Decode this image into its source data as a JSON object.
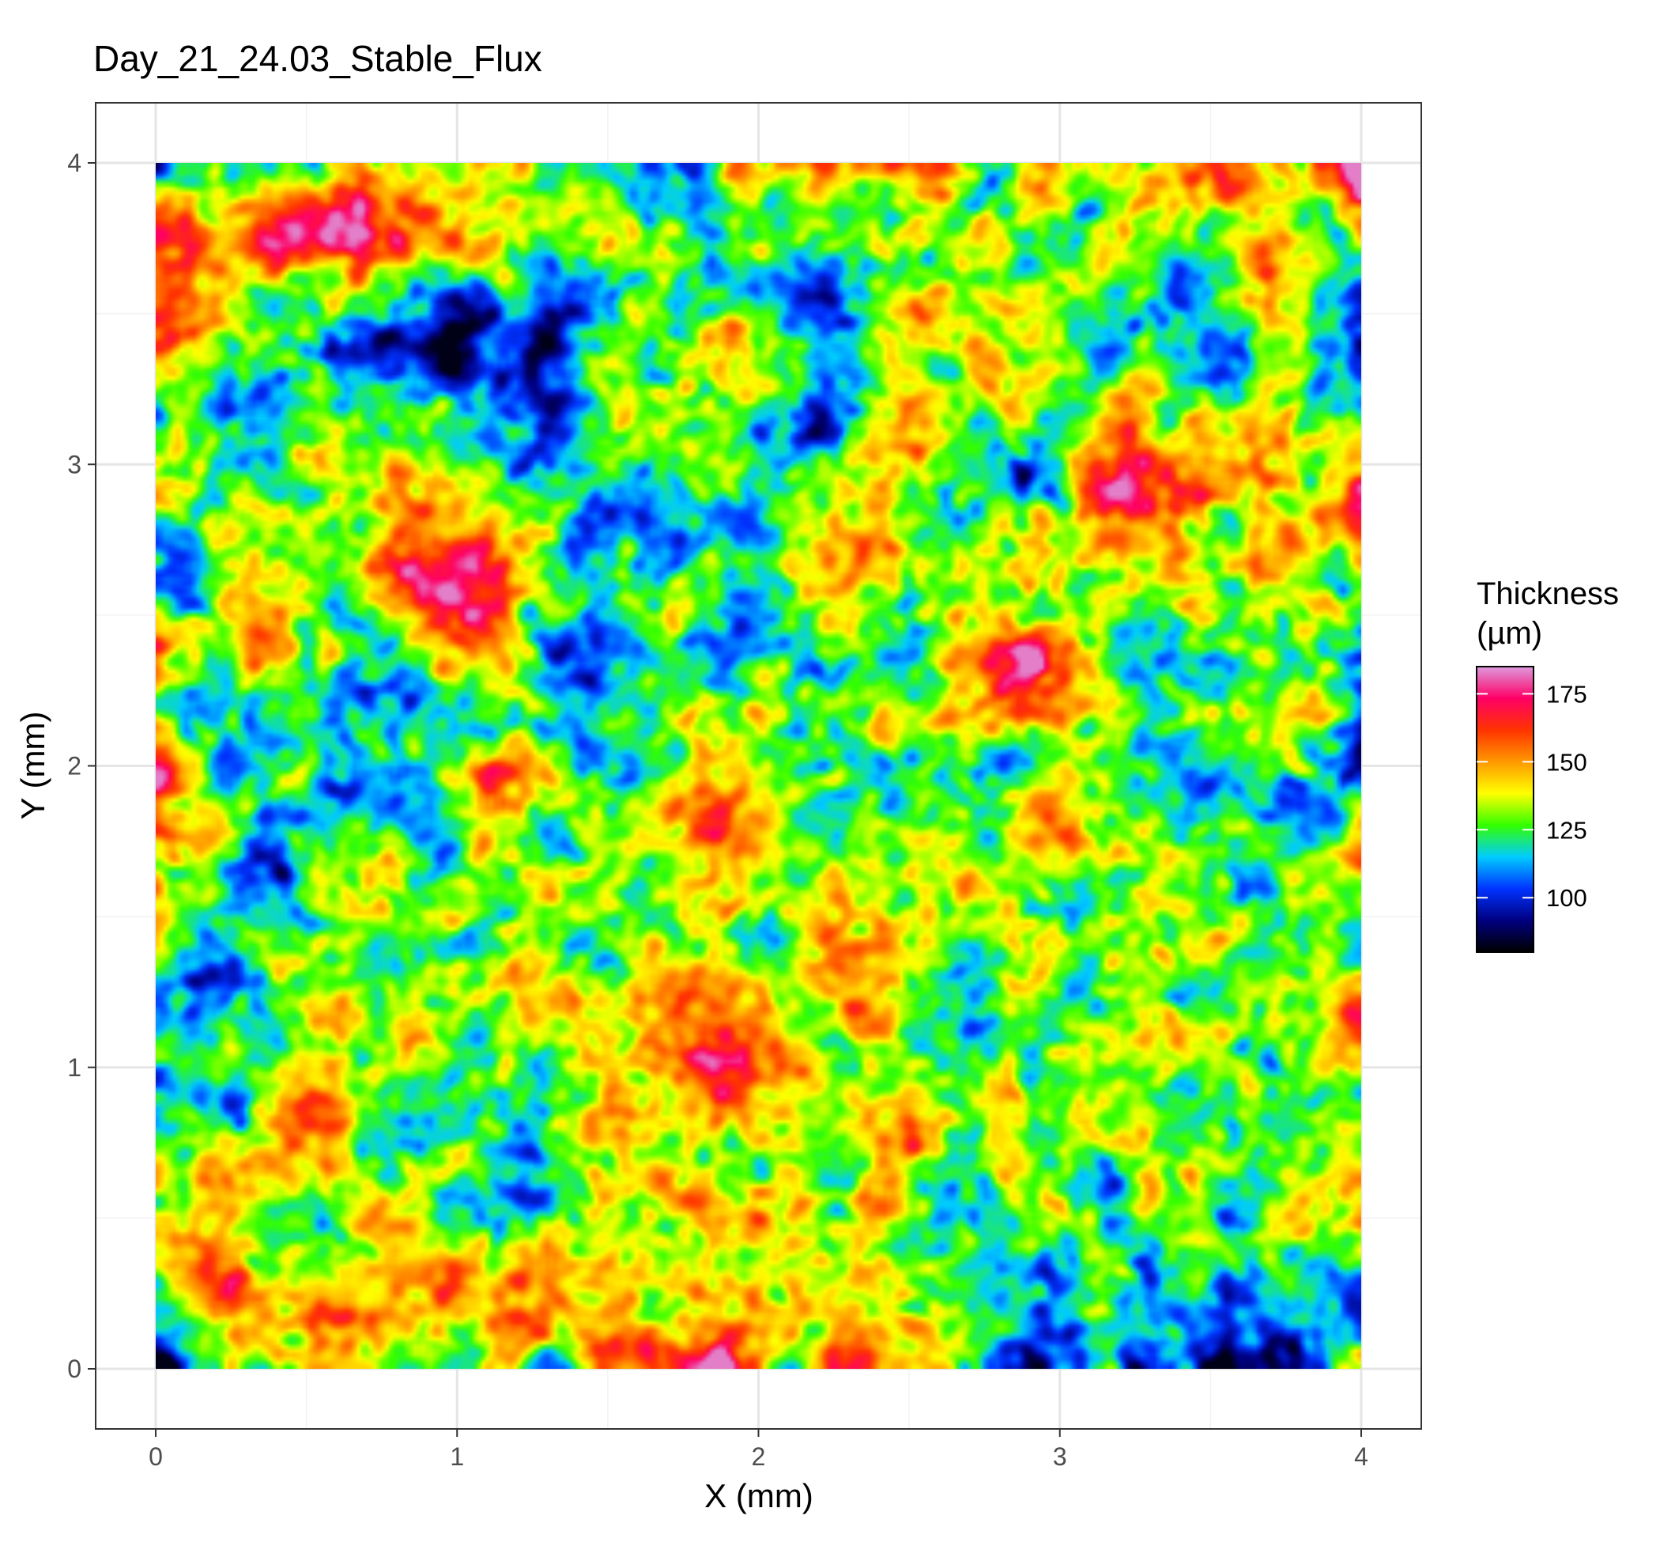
{
  "chart_data": {
    "type": "heatmap",
    "title": "Day_21_24.03_Stable_Flux",
    "xlabel": "X (mm)",
    "ylabel": "Y (mm)",
    "xlim": [
      0,
      4
    ],
    "ylim": [
      0,
      4
    ],
    "x_ticks": [
      0,
      1,
      2,
      3,
      4
    ],
    "y_ticks": [
      0,
      1,
      2,
      3,
      4
    ],
    "grid": true,
    "legend": {
      "title_lines": [
        "Thickness",
        "(µm)"
      ],
      "position": "right",
      "range": [
        80,
        185
      ],
      "ticks": [
        100,
        125,
        150,
        175
      ],
      "colors": [
        "#000000",
        "#000080",
        "#0033ff",
        "#00ccff",
        "#33ff00",
        "#ffff00",
        "#ff9900",
        "#ff3300",
        "#ff0066",
        "#dd99dd"
      ]
    },
    "value_summary": {
      "min": 82,
      "max": 183,
      "typical": 130
    },
    "hotspots": [
      {
        "x": 1.85,
        "y": 1.02,
        "value": 178
      },
      {
        "x": 3.23,
        "y": 2.95,
        "value": 180
      },
      {
        "x": 0.85,
        "y": 2.65,
        "value": 172
      },
      {
        "x": 1.08,
        "y": 2.42,
        "value": 170
      },
      {
        "x": 0.57,
        "y": 0.82,
        "value": 176
      },
      {
        "x": 0.42,
        "y": 3.78,
        "value": 165
      },
      {
        "x": 0.75,
        "y": 3.75,
        "value": 168
      },
      {
        "x": 2.55,
        "y": 0.78,
        "value": 160
      },
      {
        "x": 1.55,
        "y": 0.82,
        "value": 160
      },
      {
        "x": 0.35,
        "y": 2.42,
        "value": 158
      },
      {
        "x": 1.17,
        "y": 1.95,
        "value": 162
      },
      {
        "x": 2.9,
        "y": 2.25,
        "value": 170
      },
      {
        "x": 0.2,
        "y": 0.3,
        "value": 168
      },
      {
        "x": 3.7,
        "y": 3.58,
        "value": 158
      },
      {
        "x": 2.6,
        "y": 3.95,
        "value": 160
      },
      {
        "x": 0.65,
        "y": 3.82,
        "value": 164
      },
      {
        "x": 1.87,
        "y": 1.8,
        "value": 166
      },
      {
        "x": 2.93,
        "y": 1.83,
        "value": 164
      }
    ],
    "coldspots": [
      {
        "x": 0.88,
        "y": 1.8,
        "value": 95
      },
      {
        "x": 0.7,
        "y": 0.78,
        "value": 96
      },
      {
        "x": 1.28,
        "y": 3.45,
        "value": 98
      },
      {
        "x": 2.25,
        "y": 3.6,
        "value": 100
      },
      {
        "x": 3.8,
        "y": 1.75,
        "value": 99
      },
      {
        "x": 1.65,
        "y": 2.95,
        "value": 102
      },
      {
        "x": 0.92,
        "y": 3.38,
        "value": 103
      },
      {
        "x": 2.85,
        "y": 3.0,
        "value": 105
      },
      {
        "x": 0.18,
        "y": 2.2,
        "value": 108
      },
      {
        "x": 0.32,
        "y": 1.55,
        "value": 108
      },
      {
        "x": 2.65,
        "y": 3.98,
        "value": 100
      },
      {
        "x": 0.18,
        "y": 3.2,
        "value": 106
      },
      {
        "x": 2.8,
        "y": 2.0,
        "value": 106
      },
      {
        "x": 1.3,
        "y": 3.2,
        "value": 108
      },
      {
        "x": 3.5,
        "y": 3.3,
        "value": 108
      }
    ]
  }
}
